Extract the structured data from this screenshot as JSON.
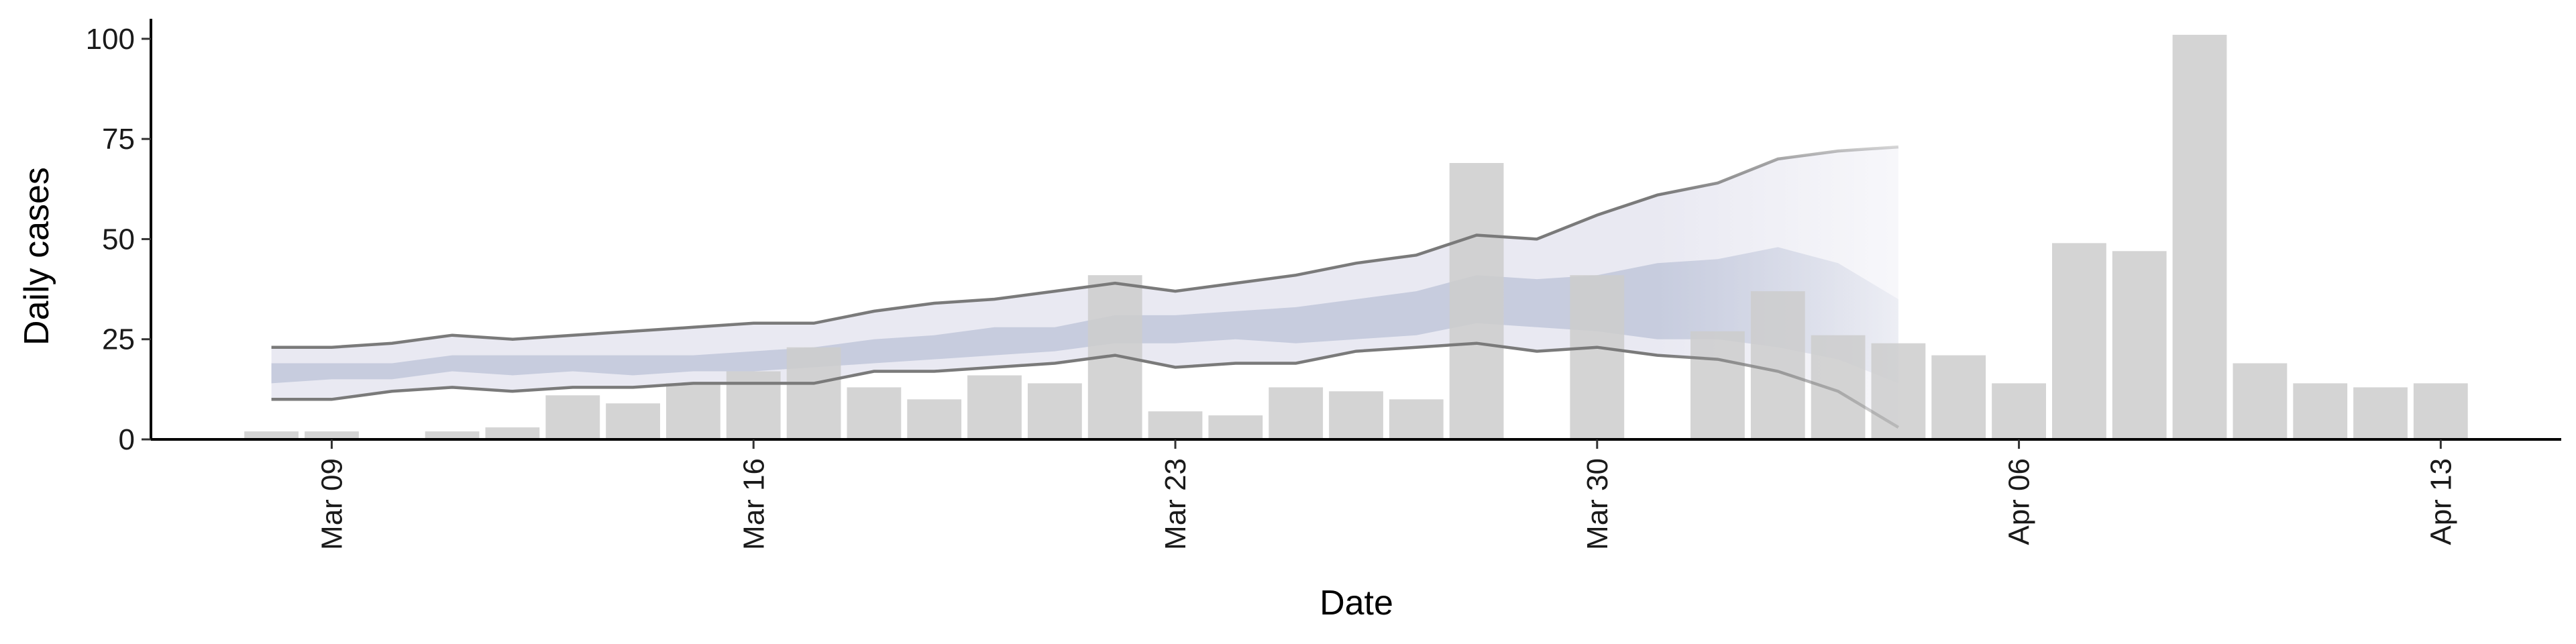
{
  "chart_data": {
    "type": "bar",
    "xlabel": "Date",
    "ylabel": "Daily cases",
    "ylim": [
      0,
      105
    ],
    "yticks": [
      0,
      25,
      50,
      75,
      100
    ],
    "xlim": [
      "2020-03-06",
      "2020-04-15"
    ],
    "xticks": [
      {
        "date": "2020-03-09",
        "label": "Mar 09"
      },
      {
        "date": "2020-03-16",
        "label": "Mar 16"
      },
      {
        "date": "2020-03-23",
        "label": "Mar 23"
      },
      {
        "date": "2020-03-30",
        "label": "Mar 30"
      },
      {
        "date": "2020-04-06",
        "label": "Apr 06"
      },
      {
        "date": "2020-04-13",
        "label": "Apr 13"
      }
    ],
    "grid": false,
    "bars": {
      "color": "#cccccc",
      "x": [
        "2020-03-08",
        "2020-03-09",
        "2020-03-10",
        "2020-03-11",
        "2020-03-12",
        "2020-03-13",
        "2020-03-14",
        "2020-03-15",
        "2020-03-16",
        "2020-03-17",
        "2020-03-18",
        "2020-03-19",
        "2020-03-20",
        "2020-03-21",
        "2020-03-22",
        "2020-03-23",
        "2020-03-24",
        "2020-03-25",
        "2020-03-26",
        "2020-03-27",
        "2020-03-28",
        "2020-03-29",
        "2020-03-30",
        "2020-03-31",
        "2020-04-01",
        "2020-04-02",
        "2020-04-03",
        "2020-04-04",
        "2020-04-05",
        "2020-04-06",
        "2020-04-07",
        "2020-04-08",
        "2020-04-09",
        "2020-04-10",
        "2020-04-11",
        "2020-04-12",
        "2020-04-13"
      ],
      "values": [
        2,
        2,
        0,
        2,
        3,
        11,
        9,
        14,
        17,
        23,
        13,
        10,
        16,
        14,
        41,
        7,
        6,
        13,
        12,
        10,
        69,
        0,
        41,
        0,
        27,
        37,
        26,
        24,
        21,
        14,
        49,
        47,
        101,
        19,
        14,
        13,
        14
      ]
    },
    "band_series": {
      "x": [
        "2020-03-08",
        "2020-03-09",
        "2020-03-10",
        "2020-03-11",
        "2020-03-12",
        "2020-03-13",
        "2020-03-14",
        "2020-03-15",
        "2020-03-16",
        "2020-03-17",
        "2020-03-18",
        "2020-03-19",
        "2020-03-20",
        "2020-03-21",
        "2020-03-22",
        "2020-03-23",
        "2020-03-24",
        "2020-03-25",
        "2020-03-26",
        "2020-03-27",
        "2020-03-28",
        "2020-03-29",
        "2020-03-30",
        "2020-03-31",
        "2020-04-01",
        "2020-04-02",
        "2020-04-03",
        "2020-04-04"
      ],
      "upper": [
        23,
        23,
        24,
        26,
        25,
        26,
        27,
        28,
        29,
        29,
        32,
        34,
        35,
        37,
        39,
        37,
        39,
        41,
        44,
        46,
        51,
        50,
        56,
        61,
        64,
        70,
        72,
        73
      ],
      "lower": [
        10,
        10,
        12,
        13,
        12,
        13,
        13,
        14,
        14,
        14,
        17,
        17,
        18,
        19,
        21,
        18,
        19,
        19,
        22,
        23,
        24,
        22,
        23,
        21,
        20,
        17,
        12,
        3
      ],
      "inner_upper": [
        19,
        19,
        19,
        21,
        21,
        21,
        21,
        21,
        22,
        23,
        25,
        26,
        28,
        28,
        31,
        31,
        32,
        33,
        35,
        37,
        41,
        40,
        41,
        44,
        45,
        48,
        44,
        35
      ],
      "inner_lower": [
        14,
        15,
        15,
        17,
        16,
        17,
        16,
        17,
        17,
        18,
        19,
        20,
        21,
        22,
        24,
        24,
        25,
        24,
        25,
        26,
        29,
        28,
        27,
        25,
        25,
        23,
        20,
        14
      ],
      "outer_band_color": "#e9e9f2",
      "inner_band_color": "#c3c9dc",
      "line_color": "#7a7a7a",
      "projection_start": "2020-03-31"
    }
  }
}
